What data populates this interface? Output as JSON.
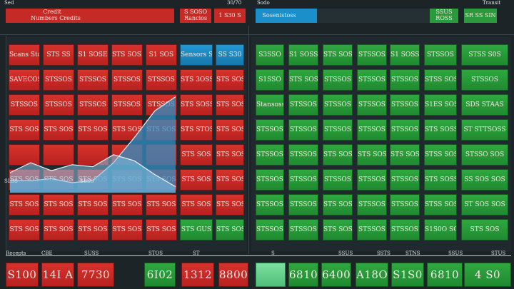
{
  "window": {
    "title_left": "Sed",
    "title_center": "30/70",
    "title_mid": "Sodo",
    "title_right": "Transit"
  },
  "header": {
    "red_banner": {
      "line1": "Credit",
      "line2": "Numbers   Credits"
    },
    "red_box1": {
      "line1": "S SOSO",
      "line2": "Rancios"
    },
    "red_box2": {
      "line1": "1 S30 S"
    },
    "blue_banner": {
      "text": "Sosenistoss"
    },
    "green_box1": {
      "line1": "SSUS",
      "line2": "ROSS"
    },
    "green_box2": {
      "line1": "SR SS SIN"
    }
  },
  "left_grid": {
    "rows": [
      [
        "Scans Stocks",
        "STS SS",
        "S1 SOSE",
        "STS SOS SO",
        "S1 SOS",
        "Sensors Stocks",
        "SS S30"
      ],
      [
        "SAVECOS",
        "STSSOS",
        "STSSOS",
        "STSSOS",
        "STSSOS",
        "STS 3OSSES",
        "STS SOS"
      ],
      [
        "STSSOS",
        "STSSOS",
        "STSSOS",
        "STSSOS",
        "STSSOS",
        "STS SOSS",
        "STS SOS"
      ],
      [
        "STS SOS",
        "STS SOS",
        "STS SOS",
        "STS SOS",
        "STS SOS",
        "STS STOSS",
        "STS SOS"
      ],
      [
        "",
        "",
        "",
        "",
        "",
        "STS SOS",
        "STS SOS"
      ],
      [
        "STS SOS",
        "STS SOS",
        "STS SOS",
        "STS SOS",
        "STS SOS",
        "STS SOS",
        "STS SOS"
      ],
      [
        "STS SOS",
        "STS SOS",
        "STS SOS",
        "STS SOS",
        "STS SOS",
        "STS SOS",
        "STS SOS"
      ],
      [
        "STS SOS",
        "STS SOS",
        "STS SOS",
        "STS SOS",
        "STS SOS",
        "STS GUS",
        "STS SOS"
      ]
    ]
  },
  "right_grid": {
    "rows": [
      [
        "S3SSO",
        "S1 SOSS",
        "STS SOS",
        "STSSOS",
        "S1 SOSS",
        "STSSOS",
        "STSS S0S"
      ],
      [
        "S1SSO",
        "STS SOS",
        "STSSOS",
        "STSSOS",
        "STSSOS",
        "STSS SOS",
        "STSSOS"
      ],
      [
        "Stansoss",
        "STSSOS",
        "STSSOS",
        "STSSOS",
        "STSSOS",
        "S1ES SOSS",
        "SDS STAAS"
      ],
      [
        "STSSOS",
        "STSSOS",
        "STSSOS",
        "STSSOS",
        "STSSOS",
        "STS SOSS",
        "ST STTSOSS"
      ],
      [
        "STSSOS",
        "STSSOS",
        "STS SOS",
        "STS SOS",
        "STS SOS",
        "STSS SOS",
        "STSSO SOS"
      ],
      [
        "STSSOS",
        "STSSOS",
        "STSSOS",
        "STSSOS",
        "STSSOS",
        "STS SOSS",
        "SS SOS SOS"
      ],
      [
        "STSSOS",
        "STSSOS",
        "STS SOS",
        "STSSOS",
        "STSSOS",
        "STSS SOSS",
        "ST SOS SOS"
      ],
      [
        "STSSOS",
        "STSSOS",
        "STS SOS",
        "STSSOS",
        "STSSOS",
        "S1S0O SOS",
        "STS SOS"
      ]
    ]
  },
  "chart_labels": {
    "left": "SLSS",
    "mid": "SBSS"
  },
  "status_bar": {
    "items": [
      "Recepts",
      "CBE",
      "SUSS",
      "STOS",
      "ST",
      "S",
      "SSUS",
      "SSTS",
      "STNS",
      "SSUS",
      "STUS"
    ]
  },
  "bottom_tiles": [
    {
      "text": "S100"
    },
    {
      "text": "14I A"
    },
    {
      "text": "7730"
    },
    {
      "text": "6I02"
    },
    {
      "text": "1312"
    },
    {
      "text": "8800"
    },
    {
      "text": ""
    },
    {
      "text": "6810"
    },
    {
      "text": "6400"
    },
    {
      "text": "A18O"
    },
    {
      "text": "S1S0"
    },
    {
      "text": "6810"
    },
    {
      "text": "4 S0"
    }
  ],
  "chart_data": {
    "type": "area",
    "series": [
      {
        "values": [
          12,
          12,
          14,
          10,
          12,
          30,
          55,
          82,
          96
        ]
      },
      {
        "values": [
          20,
          30,
          22,
          28,
          26,
          38,
          32,
          18,
          6
        ]
      }
    ],
    "colors": [
      "#2f8fc4",
      "#7fc2e6"
    ]
  },
  "colors": {
    "red": "#c62a26",
    "green": "#2a9a3c",
    "blue": "#1a8fc9",
    "background": "#1c2428"
  }
}
